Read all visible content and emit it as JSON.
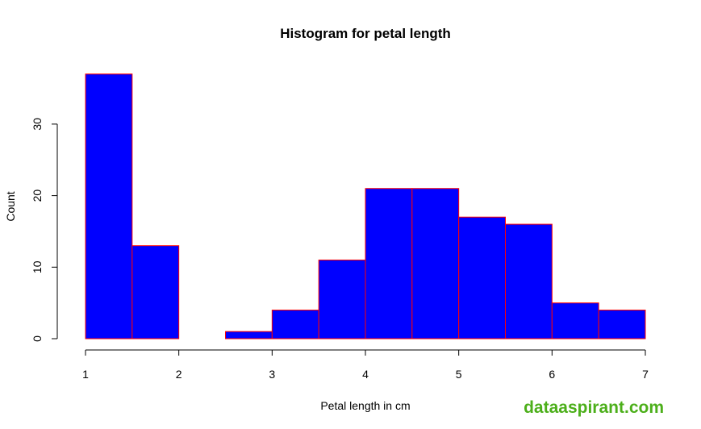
{
  "chart_data": {
    "type": "bar",
    "title": "Histogram for petal length",
    "xlabel": "Petal length in cm",
    "ylabel": "Count",
    "bins": [
      {
        "start": 1.0,
        "end": 1.5,
        "count": 37
      },
      {
        "start": 1.5,
        "end": 2.0,
        "count": 13
      },
      {
        "start": 2.0,
        "end": 2.5,
        "count": 0
      },
      {
        "start": 2.5,
        "end": 3.0,
        "count": 1
      },
      {
        "start": 3.0,
        "end": 3.5,
        "count": 4
      },
      {
        "start": 3.5,
        "end": 4.0,
        "count": 11
      },
      {
        "start": 4.0,
        "end": 4.5,
        "count": 21
      },
      {
        "start": 4.5,
        "end": 5.0,
        "count": 21
      },
      {
        "start": 5.0,
        "end": 5.5,
        "count": 17
      },
      {
        "start": 5.5,
        "end": 6.0,
        "count": 16
      },
      {
        "start": 6.0,
        "end": 6.5,
        "count": 5
      },
      {
        "start": 6.5,
        "end": 7.0,
        "count": 4
      }
    ],
    "xlim": [
      1,
      7
    ],
    "ylim": [
      0,
      37
    ],
    "x_ticks": [
      "1",
      "2",
      "3",
      "4",
      "5",
      "6",
      "7"
    ],
    "y_ticks": [
      "0",
      "10",
      "20",
      "30"
    ],
    "bar_fill": "#0000ff",
    "bar_border": "#ff0000",
    "grid": false
  },
  "watermark": "dataaspirant.com"
}
